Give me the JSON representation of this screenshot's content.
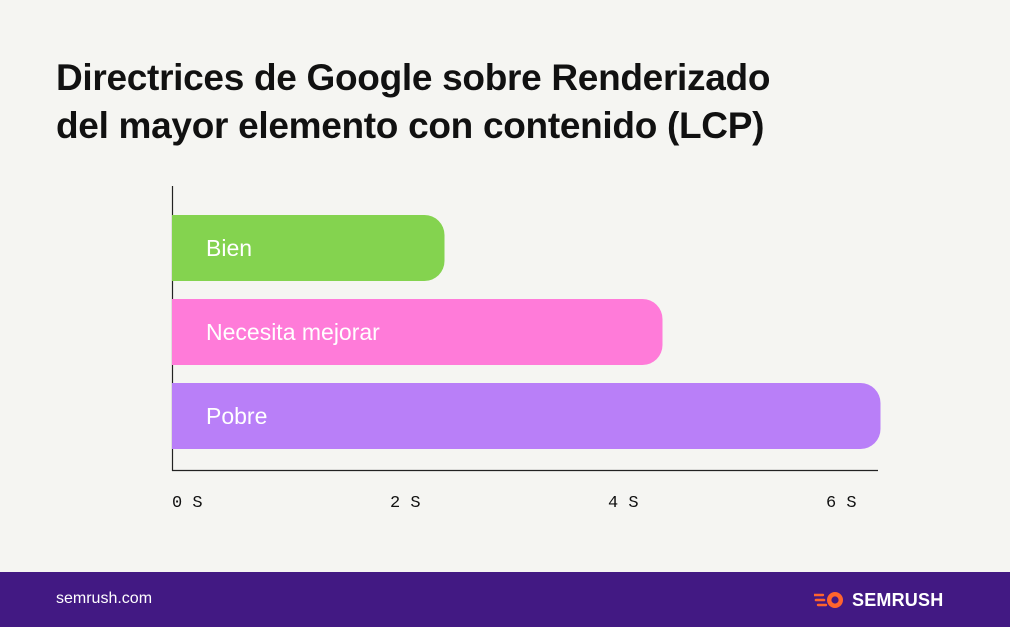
{
  "header": {
    "title_line1": "Directrices de Google sobre Renderizado",
    "title_line2": "del mayor elemento con contenido (LCP)"
  },
  "chart_data": {
    "type": "bar",
    "orientation": "horizontal",
    "categories": [
      "Bien",
      "Necesita mejorar",
      "Pobre"
    ],
    "values": [
      2.5,
      4.5,
      6.5
    ],
    "colors": [
      "#84d34f",
      "#ff7bd9",
      "#b97ff8"
    ],
    "x_ticks": [
      "0 S",
      "2 S",
      "4 S",
      "6 S"
    ],
    "xlim": [
      0,
      6.5
    ],
    "grid": false,
    "legend": "none"
  },
  "footer": {
    "url": "semrush.com",
    "brand": "SEMRUSH",
    "background": "#421983",
    "accent": "#ff642d"
  }
}
